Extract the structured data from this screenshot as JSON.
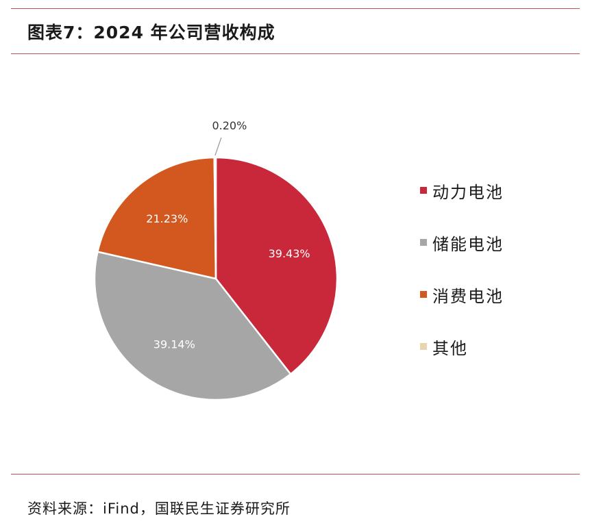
{
  "header": {
    "title": "图表7：2024 年公司营收构成"
  },
  "footer": {
    "source": "资料来源：iFind，国联民生证券研究所"
  },
  "chart_data": {
    "type": "pie",
    "title": "图表7：2024 年公司营收构成",
    "legend_position": "right",
    "series": [
      {
        "name": "动力电池",
        "value": 39.43,
        "label": "39.43%",
        "color": "#c8283a"
      },
      {
        "name": "储能电池",
        "value": 39.14,
        "label": "39.14%",
        "color": "#a6a6a6"
      },
      {
        "name": "消费电池",
        "value": 21.23,
        "label": "21.23%",
        "color": "#d2581f"
      },
      {
        "name": "其他",
        "value": 0.2,
        "label": "0.20%",
        "color": "#e8d5b0"
      }
    ]
  }
}
